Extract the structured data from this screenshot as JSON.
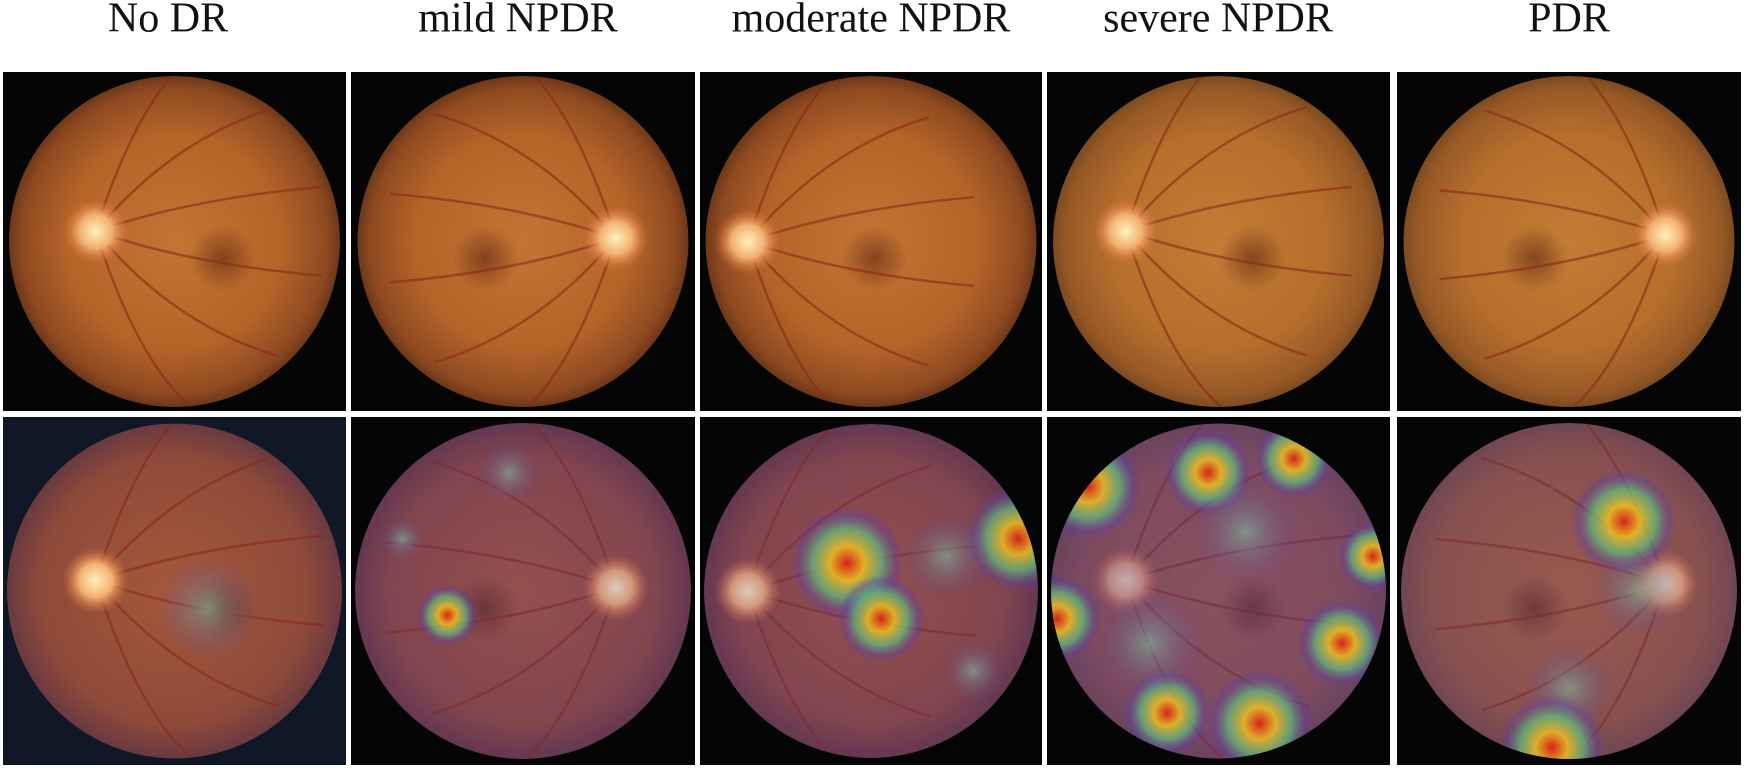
{
  "labels": [
    "No DR",
    "mild NPDR",
    "moderate NPDR",
    "severe NPDR",
    "PDR"
  ]
}
